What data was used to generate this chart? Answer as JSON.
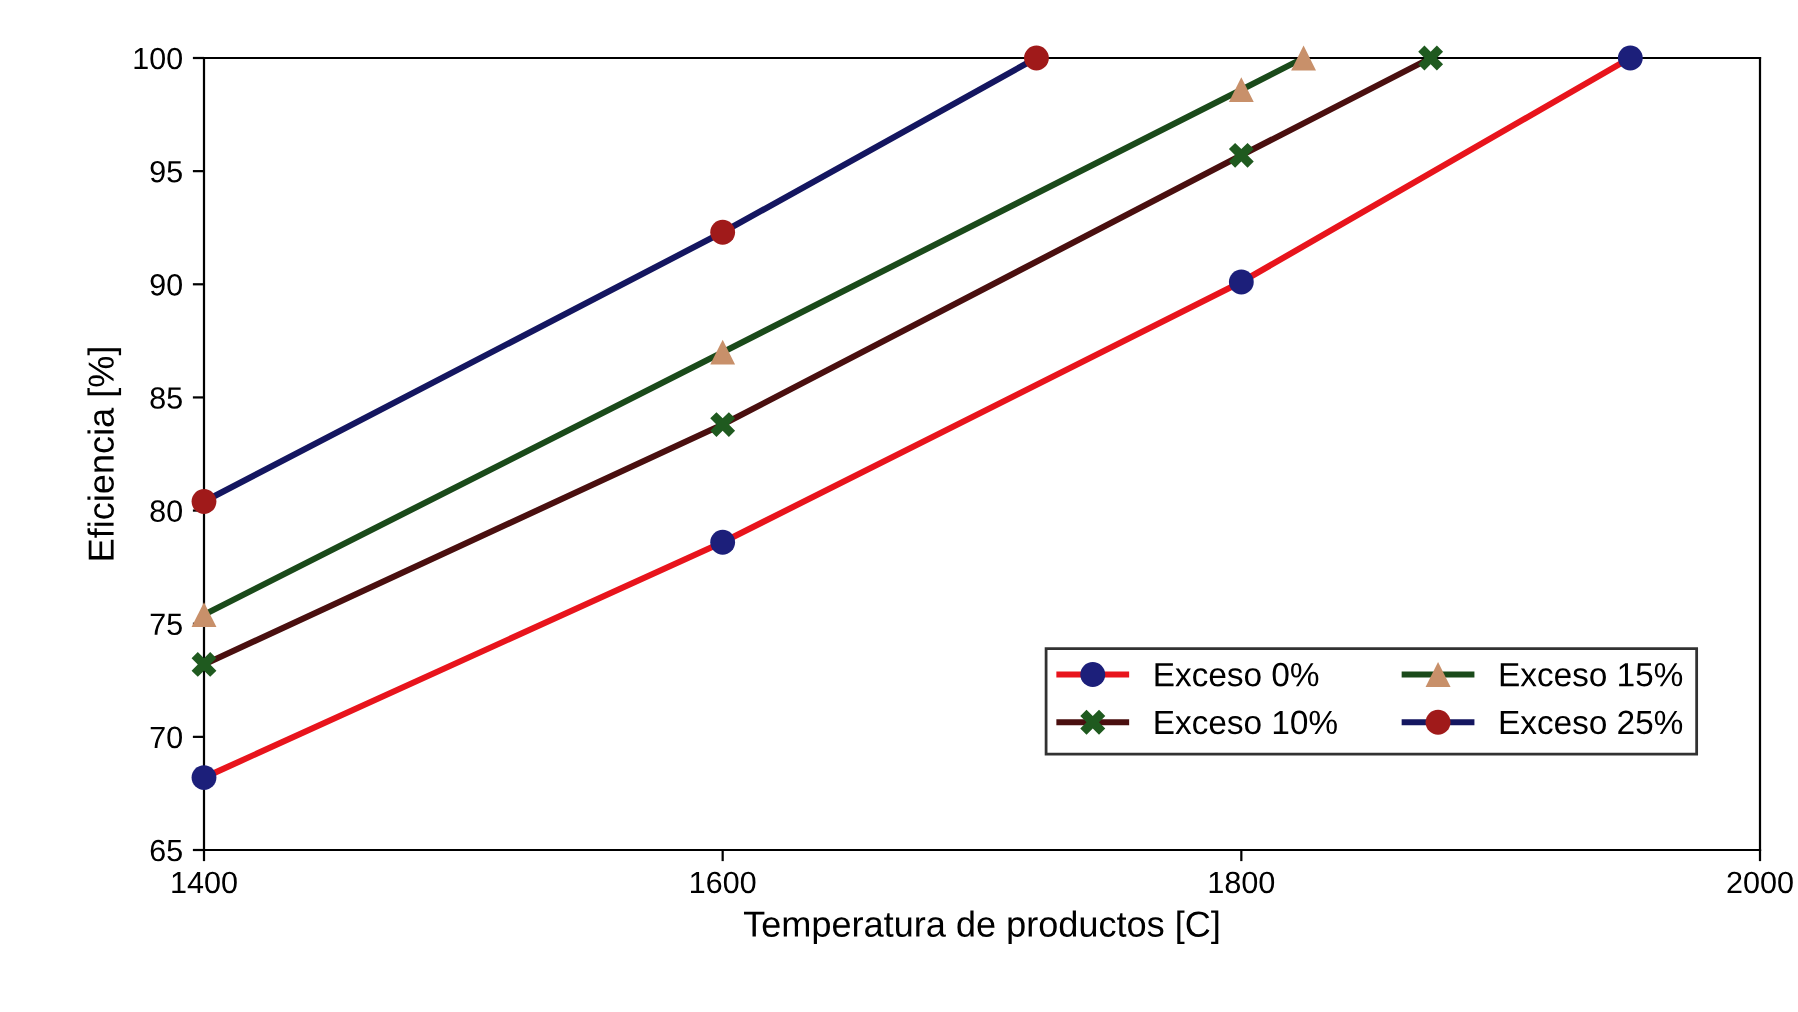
{
  "chart_data": {
    "type": "line",
    "xlabel": "Temperatura de productos [C]",
    "ylabel": "Eficiencia [%]",
    "xlim": [
      1400,
      2000
    ],
    "xticks": [
      1400,
      1600,
      1800,
      2000
    ],
    "ylim": [
      65,
      100
    ],
    "yticks": [
      65,
      70,
      75,
      80,
      85,
      90,
      95,
      100
    ],
    "grid": false,
    "legend": "bottom right",
    "series": [
      {
        "name": "Exceso 0%",
        "color": "#e8141c",
        "marker": "circle",
        "colors": [
          "#1c1f7a",
          "#1c1f7a",
          "#1c1f7a",
          "#1c1f7a"
        ],
        "x": [
          1400,
          1600,
          1800,
          1950
        ],
        "values": [
          68.2,
          78.6,
          90.1,
          100
        ]
      },
      {
        "name": "Exceso 10%",
        "color": "#4a0f0f",
        "marker": "cross",
        "colors": [
          "#1f5a1f",
          "#1f5a1f",
          "#1f5a1f",
          "#1f5a1f"
        ],
        "x": [
          1400,
          1600,
          1800,
          1873
        ],
        "values": [
          73.2,
          83.8,
          95.7,
          100
        ]
      },
      {
        "name": "Exceso 15%",
        "color": "#1a4a1a",
        "marker": "triangle",
        "colors": [
          "#c8906a",
          "#c8906a",
          "#c8906a",
          "#c8906a"
        ],
        "x": [
          1400,
          1600,
          1800,
          1824
        ],
        "values": [
          75.4,
          87.0,
          98.6,
          100
        ]
      },
      {
        "name": "Exceso 25%",
        "color": "#141660",
        "marker": "circle",
        "colors": [
          "#a01a1a",
          "#a01a1a",
          "#a01a1a"
        ],
        "x": [
          1400,
          1600,
          1721
        ],
        "values": [
          80.4,
          92.3,
          100
        ]
      }
    ]
  }
}
